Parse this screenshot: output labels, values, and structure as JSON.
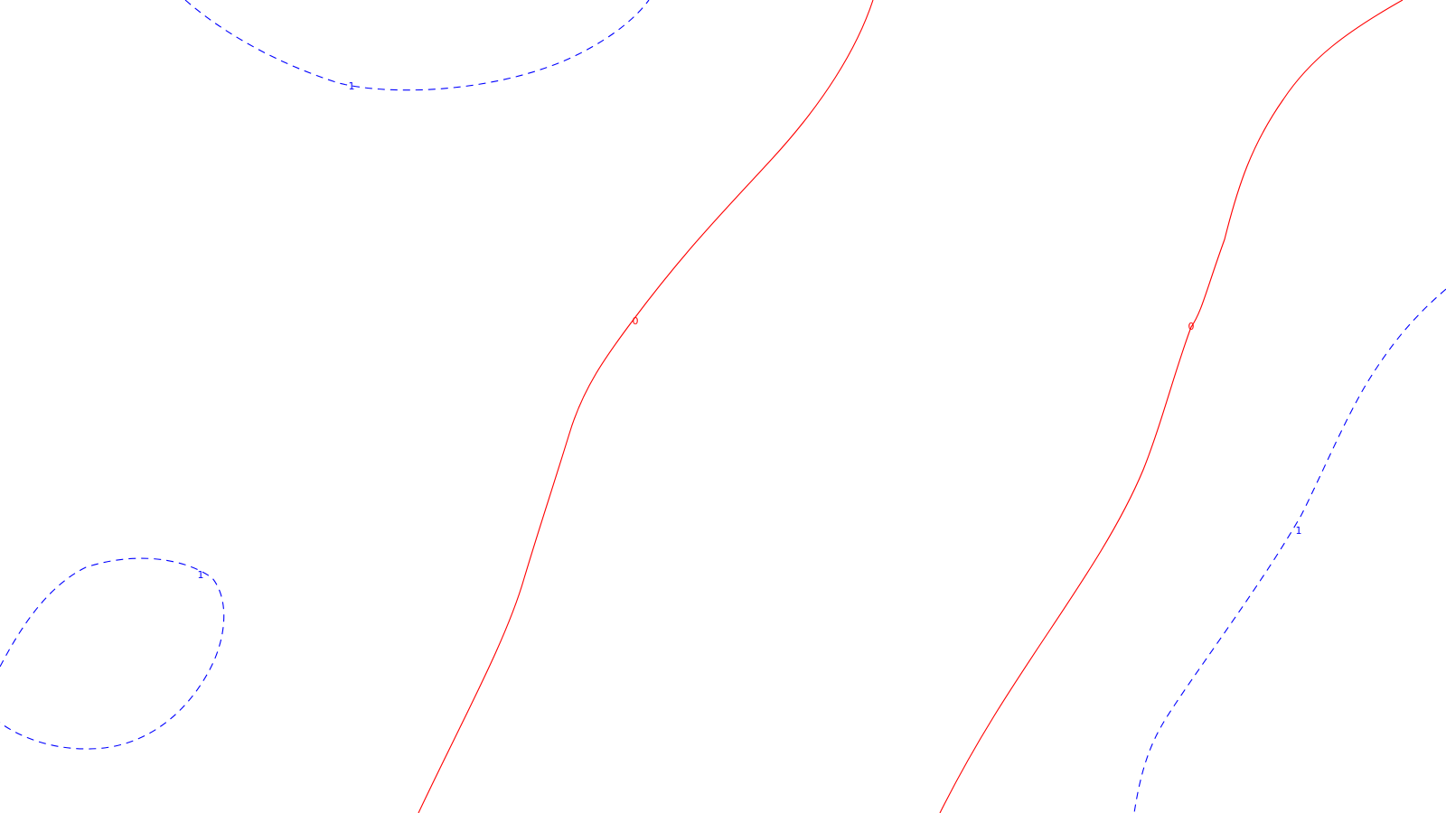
{
  "chart_data": {
    "type": "contour",
    "title": "",
    "xlabel": "",
    "ylabel": "",
    "axes_visible": false,
    "grid": false,
    "legend": "none",
    "styles": {
      "0": {
        "color": "#ff0000",
        "dash": "solid"
      },
      "1": {
        "color": "#0000ff",
        "dash": "dashed"
      }
    },
    "contours": [
      {
        "id": "contour-top-loop",
        "level": "1",
        "label": "1"
      },
      {
        "id": "contour-left-loop",
        "level": "1",
        "label": "1"
      },
      {
        "id": "contour-center-line",
        "level": "0",
        "label": "0"
      },
      {
        "id": "contour-right-line",
        "level": "0",
        "label": "0"
      },
      {
        "id": "contour-far-right-line",
        "level": "1",
        "label": "1"
      }
    ]
  }
}
